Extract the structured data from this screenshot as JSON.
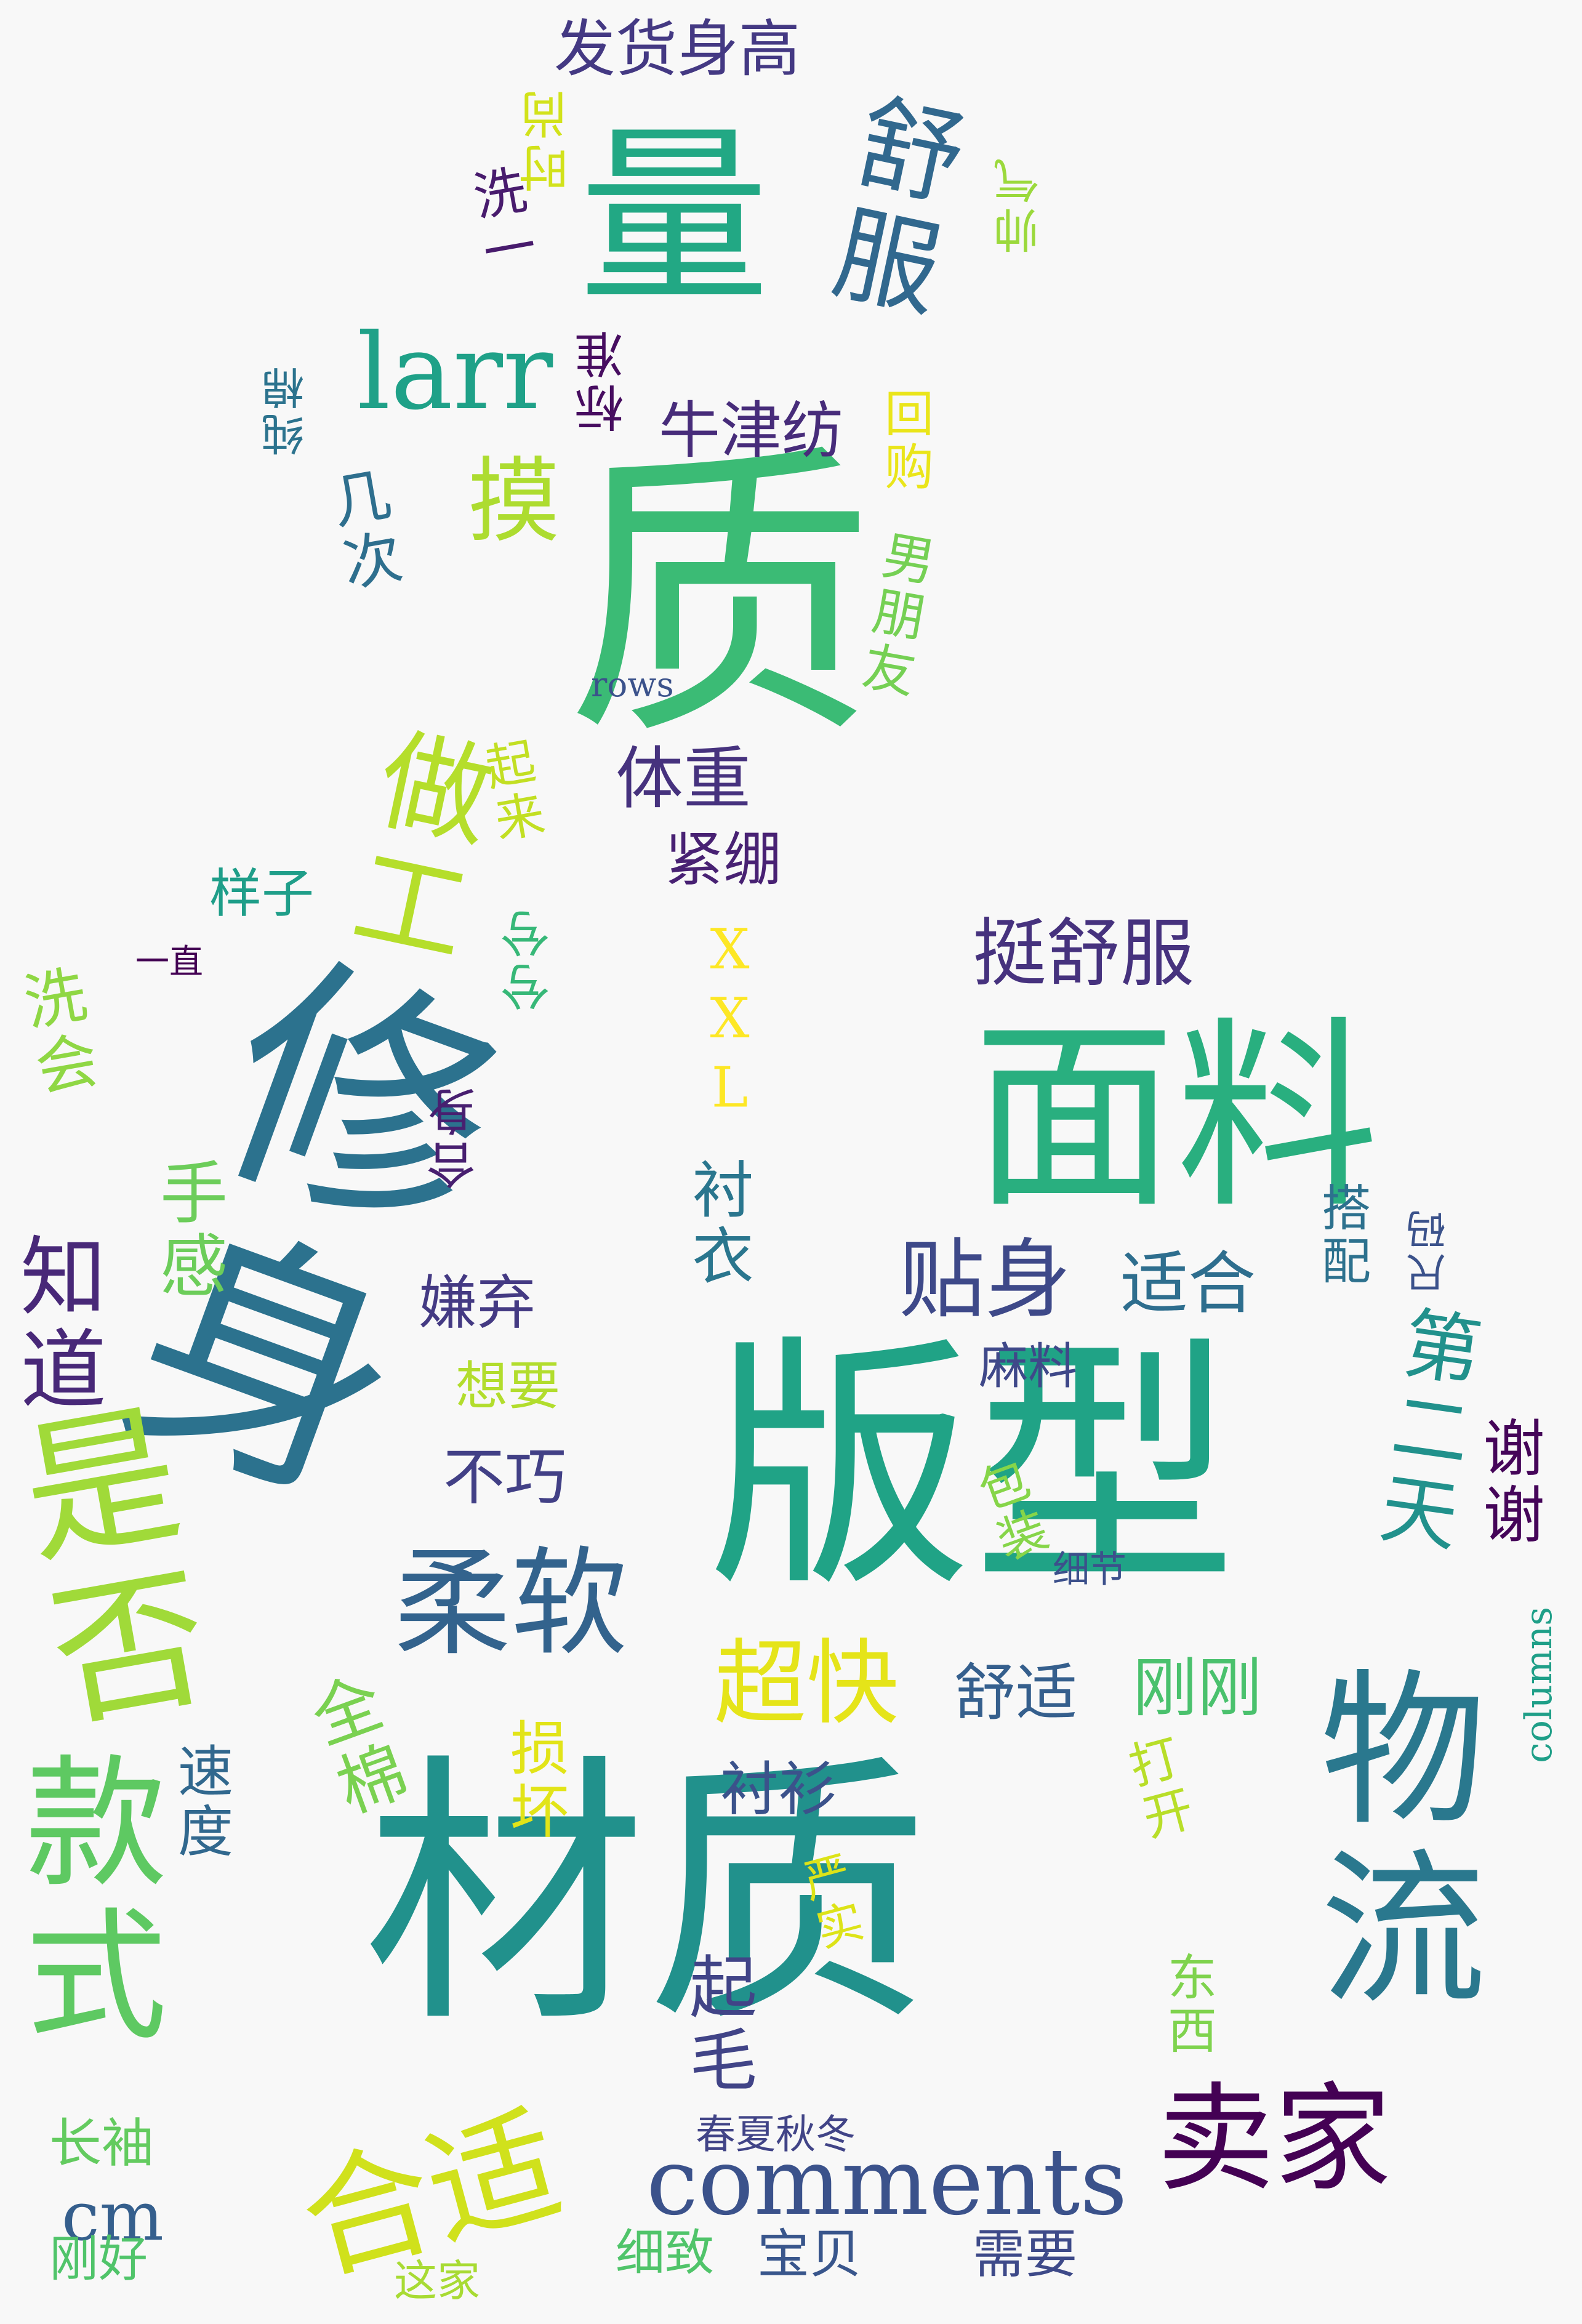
{
  "words": [
    {
      "text": "材质",
      "color": "#21918c"
    },
    {
      "text": "版型",
      "color": "#20a386"
    },
    {
      "text": "修身",
      "color": "#2c728e"
    },
    {
      "text": "面料",
      "color": "#29af7f"
    },
    {
      "text": "质",
      "color": "#3bbb75"
    },
    {
      "text": "量",
      "color": "#22a884"
    },
    {
      "text": "物流",
      "color": "#2a788e"
    },
    {
      "text": "是否",
      "color": "#a0da39"
    },
    {
      "text": "款式",
      "color": "#5ec962"
    },
    {
      "text": "柔软",
      "color": "#33638d"
    },
    {
      "text": "卖家",
      "color": "#440154"
    },
    {
      "text": "合适",
      "color": "#d0e11c"
    },
    {
      "text": "做工",
      "color": "#b5de2b"
    },
    {
      "text": "舒服",
      "color": "#31688e"
    },
    {
      "text": "comments",
      "color": "#3b528b"
    },
    {
      "text": "larr",
      "color": "#1fa188"
    },
    {
      "text": "超快",
      "color": "#e5e419"
    },
    {
      "text": "知道",
      "color": "#482878"
    },
    {
      "text": "贴身",
      "color": "#3e4989"
    },
    {
      "text": "第二天",
      "color": "#21918c"
    },
    {
      "text": "挺舒服",
      "color": "#46327e"
    },
    {
      "text": "起毛",
      "color": "#414487"
    },
    {
      "text": "体重",
      "color": "#46327e"
    },
    {
      "text": "摸",
      "color": "#addc30"
    },
    {
      "text": "适合",
      "color": "#2e6e8e"
    },
    {
      "text": "全棉",
      "color": "#7ad151"
    },
    {
      "text": "牛津纺",
      "color": "#472c7a"
    },
    {
      "text": "刚刚",
      "color": "#4ac16d"
    },
    {
      "text": "手感",
      "color": "#6ccd5a"
    },
    {
      "text": "衬衣",
      "color": "#2a768e"
    },
    {
      "text": "发货身高",
      "color": "#443983"
    },
    {
      "text": "舒适",
      "color": "#355f8d"
    },
    {
      "text": "XXL",
      "color": "#fde725"
    },
    {
      "text": "洗会",
      "color": "#8fd744"
    },
    {
      "text": "不巧",
      "color": "#424086"
    },
    {
      "text": "紧绷",
      "color": "#482173"
    },
    {
      "text": "谢谢",
      "color": "#450559"
    },
    {
      "text": "损坏",
      "color": "#e2e418"
    },
    {
      "text": "几次",
      "color": "#2e6f8e"
    },
    {
      "text": "衬衫",
      "color": "#3b528b"
    },
    {
      "text": "嫌弃",
      "color": "#443a83"
    },
    {
      "text": "合身",
      "color": "#481f70"
    },
    {
      "text": "东西",
      "color": "#7fd34e"
    },
    {
      "text": "男朋友",
      "color": "#75d054"
    },
    {
      "text": "cm",
      "color": "#355f8d"
    },
    {
      "text": "宝贝",
      "color": "#39568c"
    },
    {
      "text": "长袖",
      "color": "#63cb5f"
    },
    {
      "text": "打开",
      "color": "#b8de29"
    },
    {
      "text": "想要",
      "color": "#b2dd2d"
    },
    {
      "text": "速度",
      "color": "#31688e"
    },
    {
      "text": "样子",
      "color": "#1f9e89"
    },
    {
      "text": "洗一",
      "color": "#481b6d"
    },
    {
      "text": "起来",
      "color": "#c2df23"
    },
    {
      "text": "严实",
      "color": "#dde318"
    },
    {
      "text": "需要",
      "color": "#3e4a89"
    },
    {
      "text": "细致",
      "color": "#50c46a"
    },
    {
      "text": "刚好",
      "color": "#50c46a"
    },
    {
      "text": "包装",
      "color": "#86d549"
    },
    {
      "text": "时尚",
      "color": "#d2e21b"
    },
    {
      "text": "麻料",
      "color": "#3f4889"
    },
    {
      "text": "春夏秋冬",
      "color": "#414487"
    },
    {
      "text": "搭配",
      "color": "#2d718e"
    },
    {
      "text": "帅气",
      "color": "#9bd93c"
    },
    {
      "text": "回购",
      "color": "#eae51a"
    },
    {
      "text": "兮兮",
      "color": "#37b878"
    },
    {
      "text": "标准",
      "color": "#470d60"
    },
    {
      "text": "纯棉",
      "color": "#2c738e"
    },
    {
      "text": "尺码",
      "color": "#3b528b"
    },
    {
      "text": "这家",
      "color": "#a8db34"
    },
    {
      "text": "columns",
      "color": "#1f9f88"
    },
    {
      "text": "细节",
      "color": "#3c508b"
    },
    {
      "text": "一直",
      "color": "#440154"
    },
    {
      "text": "rows",
      "color": "#3b528b"
    }
  ]
}
